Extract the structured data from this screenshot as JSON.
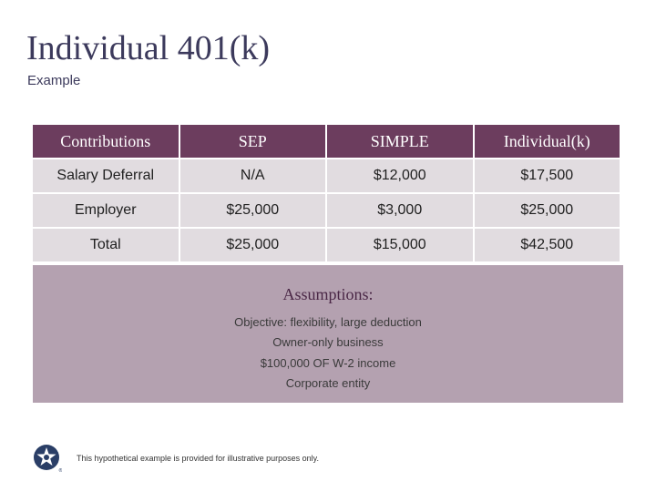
{
  "slide": {
    "title": "Individual 401(k)",
    "subtitle": "Example"
  },
  "table": {
    "headers": [
      "Contributions",
      "SEP",
      "SIMPLE",
      "Individual(k)"
    ],
    "rows": [
      [
        "Salary Deferral",
        "N/A",
        "$12,000",
        "$17,500"
      ],
      [
        "Employer",
        "$25,000",
        "$3,000",
        "$25,000"
      ],
      [
        "Total",
        "$25,000",
        "$15,000",
        "$42,500"
      ]
    ]
  },
  "assumptions": {
    "heading": "Assumptions:",
    "items": [
      "Objective: flexibility, large deduction",
      "Owner-only business",
      "$100,000 OF W-2 income",
      "Corporate entity"
    ]
  },
  "footer": {
    "note": "This hypothetical example is provided for illustrative purposes only.",
    "logo_icon": "star-circle-logo-icon"
  },
  "colors": {
    "header_bg": "#6c3d5e",
    "cell_bg": "#e1dce0",
    "assumptions_bg": "#b4a1b0",
    "title_color": "#3c3a5c",
    "logo_color": "#2a3e66"
  }
}
